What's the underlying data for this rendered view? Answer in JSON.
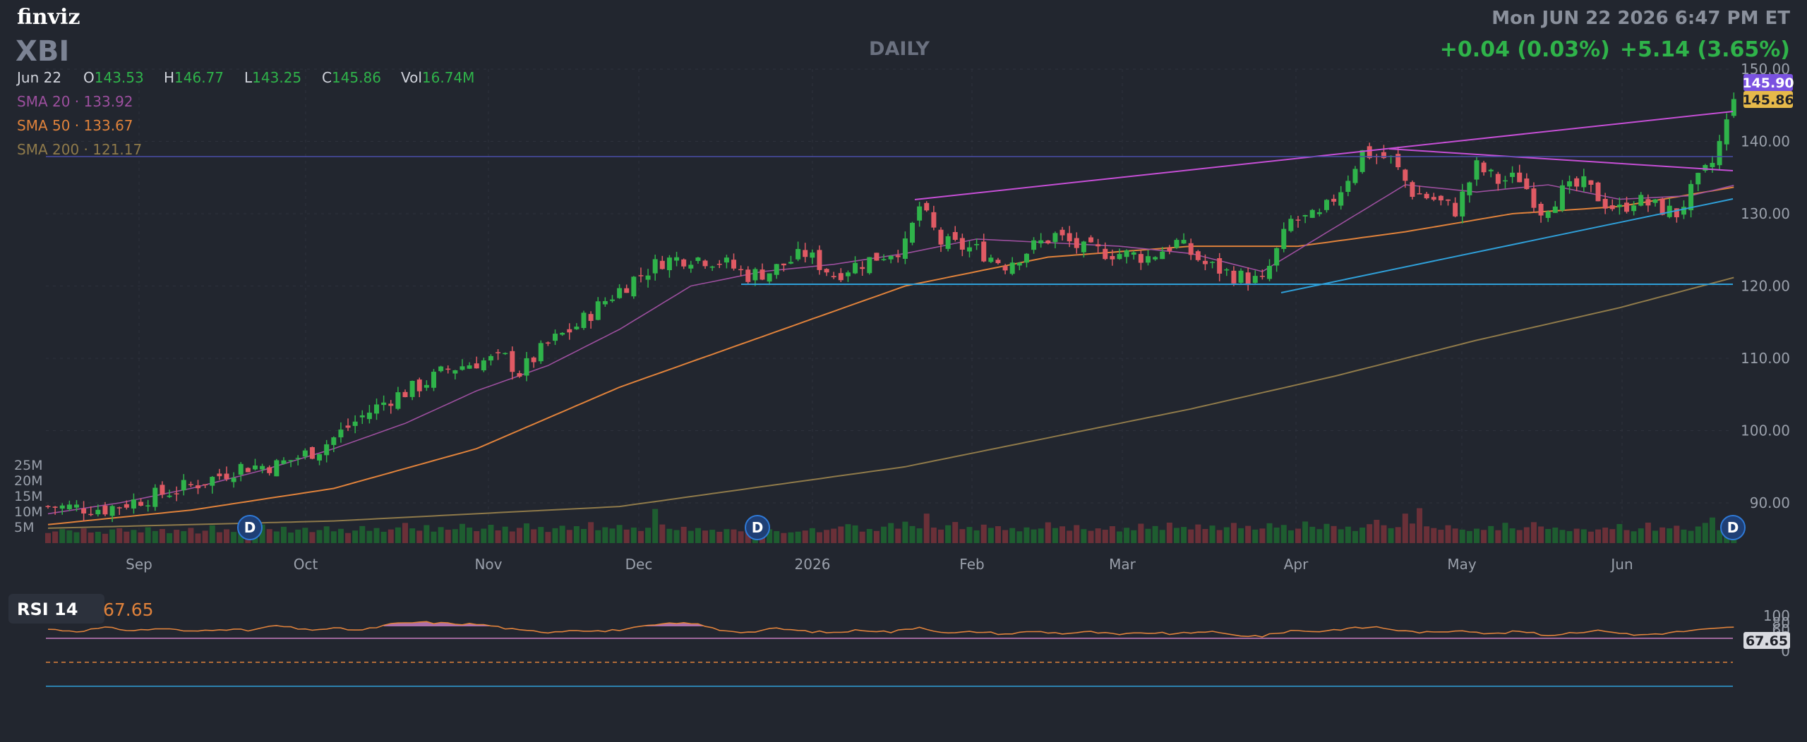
{
  "brand": "finviz",
  "datetime": "Mon JUN 22 2026 6:47 PM ET",
  "ticker": "XBI",
  "timeframe": "DAILY",
  "change_day": "+0.04 (0.03%)",
  "change_total": "+5.14 (3.65%)",
  "ohlc": {
    "date": "Jun 22",
    "o_label": "O",
    "o": "143.53",
    "h_label": "H",
    "h": "146.77",
    "l_label": "L",
    "l": "143.25",
    "c_label": "C",
    "c": "145.86",
    "vol_label": "Vol",
    "vol": "16.74M"
  },
  "indicators": [
    {
      "name": "SMA 20",
      "value": "133.92",
      "color": "#9c4f9e"
    },
    {
      "name": "SMA 50",
      "value": "133.67",
      "color": "#e0823b"
    },
    {
      "name": "SMA 200",
      "value": "121.17",
      "color": "#8f7a4a"
    }
  ],
  "price_badges": {
    "last": "145.90",
    "close": "145.86"
  },
  "rsi": {
    "label": "RSI 14",
    "value": "67.65",
    "badge": "67.65"
  },
  "colors": {
    "up": "#2fb34a",
    "down": "#e05a64",
    "vol_up": "#1e5d30",
    "vol_down": "#6a3038",
    "rsi_line": "#e0823b",
    "rsi_fill": "#c77dc0",
    "trend_purple": "#c64fd6",
    "trend_blue": "#2f9fd8"
  },
  "chart_data": {
    "type": "candlestick",
    "title": "XBI",
    "ylim": [
      85,
      150
    ],
    "y_ticks": [
      "150.00",
      "140.00",
      "130.00",
      "120.00",
      "110.00",
      "100.00",
      "90.00"
    ],
    "x_ticks": [
      "Sep",
      "Oct",
      "Nov",
      "Dec",
      "2026",
      "Feb",
      "Mar",
      "Apr",
      "May",
      "Jun"
    ],
    "volume_ticks": [
      "25M",
      "20M",
      "15M",
      "10M",
      "5M"
    ],
    "rsi_ticks": [
      "100",
      "80",
      "60",
      "40",
      "20",
      "0"
    ],
    "dividend_marker": "D",
    "close_path": [
      [
        0,
        89.5
      ],
      [
        8,
        89.2
      ],
      [
        15,
        91.0
      ],
      [
        22,
        93.0
      ],
      [
        27,
        95.0
      ],
      [
        32,
        95.2
      ],
      [
        38,
        97.5
      ],
      [
        44,
        102.0
      ],
      [
        48,
        104.5
      ],
      [
        52,
        106.2
      ],
      [
        56,
        108.5
      ],
      [
        60,
        109.5
      ],
      [
        64,
        110.0
      ],
      [
        66,
        108.0
      ],
      [
        70,
        112.0
      ],
      [
        74,
        114.5
      ],
      [
        78,
        118.0
      ],
      [
        82,
        121.0
      ],
      [
        86,
        123.5
      ],
      [
        90,
        124.0
      ],
      [
        94,
        123.5
      ],
      [
        98,
        121.5
      ],
      [
        101,
        122.0
      ],
      [
        106,
        124.5
      ],
      [
        110,
        121.5
      ],
      [
        112,
        122.5
      ],
      [
        116,
        124.0
      ],
      [
        120,
        125.5
      ],
      [
        122,
        131.0
      ],
      [
        125,
        126.0
      ],
      [
        130,
        125.0
      ],
      [
        134,
        123.0
      ],
      [
        138,
        125.5
      ],
      [
        141,
        127.0
      ],
      [
        145,
        125.0
      ],
      [
        150,
        124.5
      ],
      [
        154,
        124.0
      ],
      [
        158,
        126.0
      ],
      [
        162,
        123.0
      ],
      [
        166,
        121.5
      ],
      [
        170,
        120.5
      ],
      [
        174,
        129.0
      ],
      [
        178,
        129.5
      ],
      [
        181,
        133.5
      ],
      [
        184,
        138.5
      ],
      [
        188,
        137.5
      ],
      [
        191,
        133.0
      ],
      [
        194,
        132.0
      ],
      [
        197,
        130.5
      ],
      [
        200,
        136.5
      ],
      [
        203,
        134.5
      ],
      [
        206,
        135.0
      ],
      [
        209,
        130.5
      ],
      [
        212,
        133.0
      ],
      [
        215,
        134.0
      ],
      [
        218,
        131.5
      ],
      [
        220,
        130.5
      ],
      [
        222,
        132.0
      ],
      [
        225,
        131.0
      ],
      [
        228,
        130.0
      ],
      [
        231,
        134.5
      ],
      [
        233,
        137.0
      ],
      [
        235,
        142.5
      ],
      [
        236,
        145.86
      ]
    ],
    "sma20": [
      [
        0,
        88.5
      ],
      [
        10,
        90.0
      ],
      [
        20,
        92.0
      ],
      [
        30,
        94.5
      ],
      [
        40,
        97.5
      ],
      [
        50,
        101.0
      ],
      [
        60,
        105.5
      ],
      [
        70,
        109.0
      ],
      [
        80,
        114.0
      ],
      [
        90,
        120.0
      ],
      [
        100,
        122.0
      ],
      [
        110,
        123.0
      ],
      [
        120,
        124.5
      ],
      [
        130,
        126.5
      ],
      [
        140,
        126.0
      ],
      [
        150,
        125.5
      ],
      [
        160,
        124.5
      ],
      [
        170,
        122.0
      ],
      [
        180,
        128.0
      ],
      [
        190,
        134.0
      ],
      [
        200,
        133.0
      ],
      [
        210,
        134.0
      ],
      [
        220,
        132.0
      ],
      [
        230,
        132.5
      ],
      [
        236,
        133.92
      ]
    ],
    "sma50": [
      [
        0,
        87.0
      ],
      [
        20,
        89.0
      ],
      [
        40,
        92.0
      ],
      [
        60,
        97.5
      ],
      [
        80,
        106.0
      ],
      [
        100,
        113.0
      ],
      [
        120,
        120.0
      ],
      [
        140,
        124.0
      ],
      [
        160,
        125.5
      ],
      [
        175,
        125.5
      ],
      [
        190,
        127.5
      ],
      [
        205,
        130.0
      ],
      [
        220,
        131.0
      ],
      [
        236,
        133.67
      ]
    ],
    "sma200": [
      [
        0,
        86.5
      ],
      [
        40,
        87.5
      ],
      [
        80,
        89.5
      ],
      [
        120,
        95.0
      ],
      [
        160,
        103.0
      ],
      [
        180,
        107.5
      ],
      [
        200,
        112.5
      ],
      [
        220,
        117.0
      ],
      [
        236,
        121.17
      ]
    ],
    "volume_m": [
      6.5,
      7.5,
      9.0,
      8.2,
      7.0,
      9.5,
      6.8,
      7.3,
      6.0,
      8.8,
      9.6,
      7.4,
      8.5,
      6.9,
      10.2,
      7.8,
      9.1,
      6.4,
      8.6,
      7.7,
      9.8,
      6.2,
      8.0,
      11.5,
      7.0,
      8.9,
      7.2,
      9.4,
      6.6,
      8.3,
      12.0,
      9.0,
      7.5,
      10.5,
      6.8,
      8.7,
      9.9,
      7.1,
      8.4,
      10.8,
      7.6,
      9.2,
      6.5,
      8.1,
      11.0,
      7.9,
      9.7,
      7.3,
      8.8,
      10.1,
      13.0,
      9.5,
      8.0,
      11.6,
      7.4,
      10.3,
      8.6,
      9.0,
      12.4,
      10.0,
      7.7,
      9.3,
      11.8,
      8.2,
      10.6,
      7.5,
      9.8,
      12.7,
      8.9,
      10.4,
      7.2,
      9.6,
      11.2,
      8.5,
      10.9,
      9.1,
      13.5,
      8.3,
      10.2,
      9.4,
      11.7,
      8.7,
      10.0,
      7.8,
      9.9,
      22.0,
      12.0,
      9.2,
      8.4,
      10.5,
      7.9,
      9.7,
      8.1,
      8.6,
      7.3,
      9.0,
      8.8,
      7.6,
      8.3,
      9.5,
      10.0,
      8.9,
      7.7,
      6.5,
      6.9,
      7.4,
      8.1,
      9.6,
      7.0,
      8.5,
      9.3,
      10.7,
      12.2,
      11.4,
      7.4,
      9.1,
      7.8,
      10.6,
      12.9,
      9.3,
      13.8,
      11.0,
      9.5,
      19.0,
      10.0,
      8.7,
      11.5,
      13.6,
      9.0,
      10.4,
      8.2,
      11.9,
      9.8,
      10.9,
      8.4,
      9.7,
      7.6,
      10.1,
      8.8,
      9.4,
      13.4,
      9.7,
      10.8,
      8.0,
      11.6,
      9.0,
      7.9,
      9.5,
      8.6,
      10.9,
      7.5,
      9.9,
      8.3,
      12.5,
      9.2,
      11.0,
      8.5,
      13.2,
      9.8,
      10.4,
      8.8,
      12.0,
      9.1,
      11.3,
      8.4,
      10.2,
      13.0,
      9.6,
      11.1,
      8.7,
      9.4,
      12.8,
      10.0,
      11.7,
      8.2,
      9.3,
      13.9,
      10.5,
      9.0,
      12.4,
      11.0,
      8.9,
      10.6,
      7.8,
      10.0,
      12.2,
      15.0,
      11.5,
      9.6,
      10.3,
      19.0,
      12.6,
      22.5,
      10.8,
      9.7,
      8.6,
      11.5,
      9.4,
      8.7,
      7.8,
      9.3,
      8.5,
      11.0,
      8.3,
      13.1,
      9.5,
      8.4,
      10.2,
      13.5,
      10.7,
      9.1,
      10.0,
      8.5,
      7.7,
      9.3,
      8.9,
      7.4,
      8.8,
      10.0,
      9.0,
      12.3,
      8.4,
      7.6,
      9.5,
      13.2,
      8.0,
      10.1,
      9.5,
      11.2,
      8.7,
      7.9,
      10.7,
      13.0,
      16.5,
      8.3,
      9.4,
      16.74
    ],
    "rsi_path": [
      [
        0,
        62
      ],
      [
        4,
        56
      ],
      [
        8,
        66
      ],
      [
        12,
        58
      ],
      [
        16,
        64
      ],
      [
        20,
        55
      ],
      [
        24,
        63
      ],
      [
        28,
        58
      ],
      [
        32,
        72
      ],
      [
        36,
        60
      ],
      [
        40,
        64
      ],
      [
        44,
        59
      ],
      [
        48,
        76
      ],
      [
        52,
        82
      ],
      [
        56,
        78
      ],
      [
        60,
        76
      ],
      [
        62,
        72
      ],
      [
        66,
        58
      ],
      [
        70,
        54
      ],
      [
        74,
        60
      ],
      [
        78,
        56
      ],
      [
        82,
        65
      ],
      [
        86,
        76
      ],
      [
        90,
        80
      ],
      [
        94,
        60
      ],
      [
        98,
        53
      ],
      [
        102,
        64
      ],
      [
        106,
        56
      ],
      [
        110,
        52
      ],
      [
        114,
        60
      ],
      [
        118,
        54
      ],
      [
        122,
        68
      ],
      [
        126,
        50
      ],
      [
        130,
        55
      ],
      [
        134,
        48
      ],
      [
        138,
        56
      ],
      [
        142,
        50
      ],
      [
        146,
        54
      ],
      [
        150,
        46
      ],
      [
        154,
        52
      ],
      [
        158,
        48
      ],
      [
        162,
        56
      ],
      [
        166,
        45
      ],
      [
        170,
        42
      ],
      [
        174,
        58
      ],
      [
        178,
        56
      ],
      [
        182,
        64
      ],
      [
        186,
        68
      ],
      [
        190,
        56
      ],
      [
        194,
        52
      ],
      [
        198,
        60
      ],
      [
        202,
        48
      ],
      [
        206,
        56
      ],
      [
        210,
        44
      ],
      [
        214,
        54
      ],
      [
        218,
        58
      ],
      [
        222,
        45
      ],
      [
        226,
        50
      ],
      [
        230,
        58
      ],
      [
        234,
        64
      ],
      [
        236,
        67.65
      ]
    ]
  }
}
